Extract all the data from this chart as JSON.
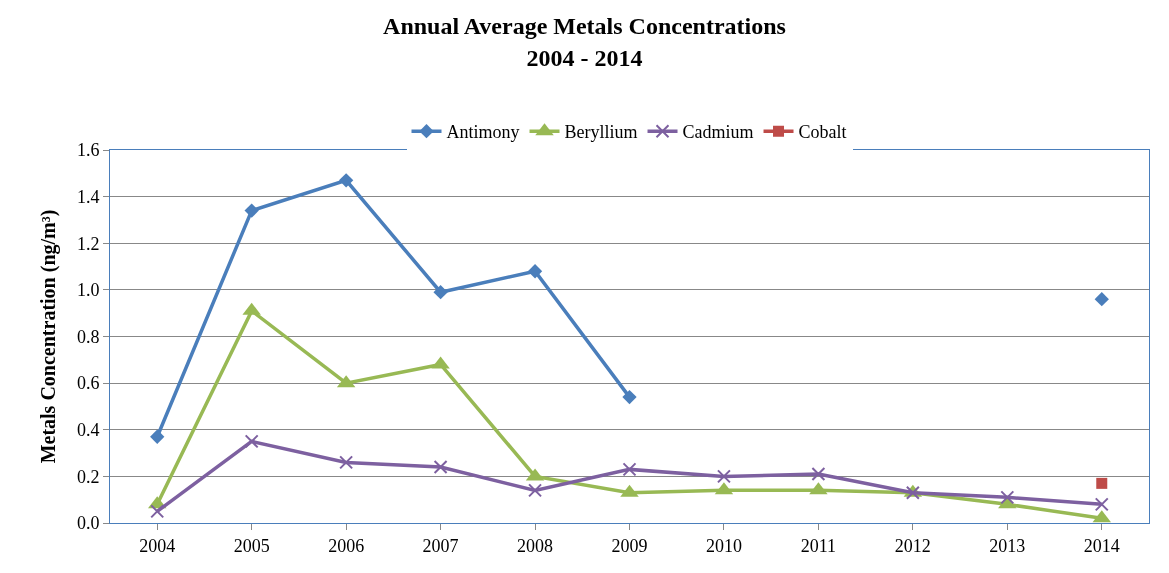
{
  "chart_data": {
    "type": "line",
    "title": "Annual Average Metals Concentrations\n2004 - 2014",
    "ylabel": "Metals Concentration (ng/m³)",
    "categories": [
      "2004",
      "2005",
      "2006",
      "2007",
      "2008",
      "2009",
      "2010",
      "2011",
      "2012",
      "2013",
      "2014"
    ],
    "series": [
      {
        "name": "Antimony",
        "color": "#4a7ebb",
        "marker": "diamond",
        "values": [
          0.37,
          1.34,
          1.47,
          0.99,
          1.08,
          0.54,
          null,
          null,
          null,
          null,
          0.96
        ]
      },
      {
        "name": "Beryllium",
        "color": "#98b954",
        "marker": "triangle",
        "values": [
          0.08,
          0.91,
          0.6,
          0.68,
          0.2,
          0.13,
          0.14,
          0.14,
          0.13,
          0.08,
          0.02
        ]
      },
      {
        "name": "Cadmium",
        "color": "#7d60a0",
        "marker": "cross",
        "values": [
          0.05,
          0.35,
          0.26,
          0.24,
          0.14,
          0.23,
          0.2,
          0.21,
          0.13,
          0.11,
          0.08
        ]
      },
      {
        "name": "Cobalt",
        "color": "#be4b48",
        "marker": "square",
        "values": [
          null,
          null,
          null,
          null,
          null,
          null,
          null,
          null,
          null,
          null,
          0.17
        ]
      }
    ],
    "ylim": [
      0,
      1.6
    ],
    "yticks": [
      {
        "value": 0,
        "label": "0.0"
      },
      0.2,
      0.4,
      0.6,
      0.8,
      {
        "value": 1,
        "label": "1.0"
      },
      1.2,
      1.4,
      1.6
    ],
    "grid": "y",
    "legend": "top",
    "line_style": "solid"
  }
}
